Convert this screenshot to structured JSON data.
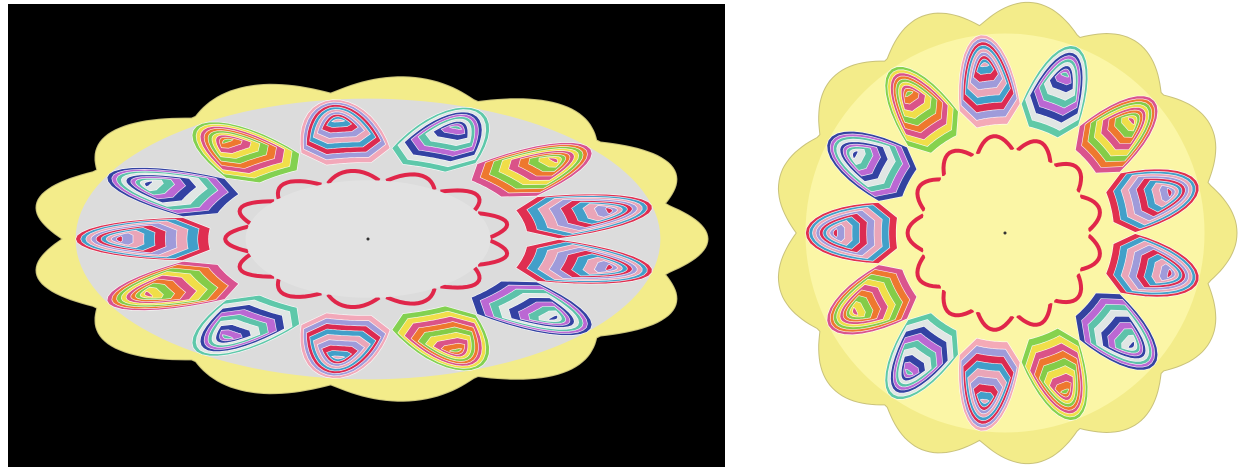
{
  "scene": {
    "left_view": "perspective",
    "right_view": "top-down",
    "left_background": "#000000",
    "right_background": "#ffffff",
    "disc_fill_left": "#dcdcdc",
    "disc_fill_right": "#fbf6a6",
    "rim_fill": "#f3ec8a",
    "inner_hub_fill_left": "#e2e2e2",
    "inner_hub_fill_right": "#fbf6a6",
    "hub_ring_color": "#e0264a",
    "lobe_count": 13,
    "band_layers": 9
  },
  "palette": [
    "#e0264a",
    "#f07a2a",
    "#2a3aa0",
    "#3aa6d0",
    "#7fd14a",
    "#c36bd6",
    "#f4a6b8",
    "#f6e04a",
    "#58c7a8",
    "#9b9bdc",
    "#d94c8c",
    "#e8e8e8"
  ]
}
